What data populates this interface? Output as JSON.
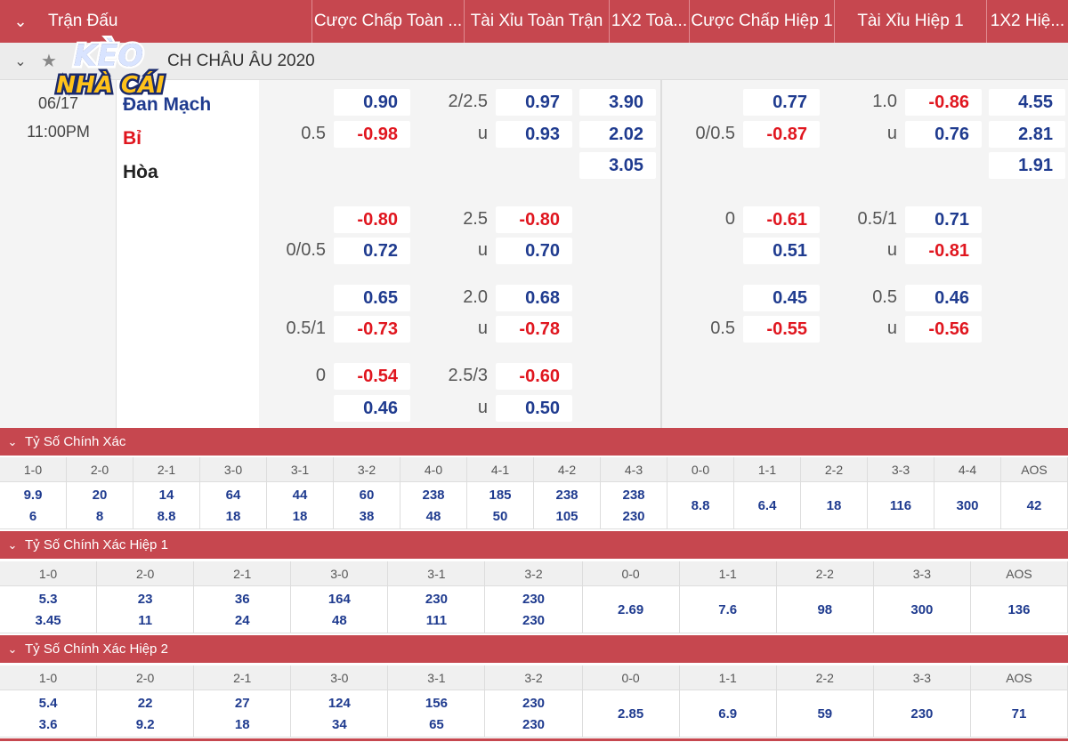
{
  "header": {
    "columns": [
      "Trận Đấu",
      "Cược Chấp Toàn ...",
      "Tài Xỉu Toàn Trận",
      "1X2 Toà...",
      "Cược Chấp Hiệp 1",
      "Tài Xỉu Hiệp 1",
      "1X2 Hiệ..."
    ]
  },
  "league": {
    "name": "CH CHÂU ÂU 2020"
  },
  "logo": {
    "line1": "KÈO",
    "line2": "NHÀ CÁI"
  },
  "match": {
    "date": "06/17",
    "time": "11:00PM",
    "home": "Đan Mạch",
    "away": "Bỉ",
    "draw": "Hòa",
    "rows": [
      {
        "hdp_l1": "",
        "hdp1": "0.90",
        "hdp_l2": "0.5",
        "hdp2": "-0.98",
        "ou_l1": "2/2.5",
        "ou1": "0.97",
        "ou_l2": "u",
        "ou2": "0.93",
        "x1": "3.90",
        "x2": "2.02",
        "x3": "3.05",
        "h1hdp_l1": "",
        "h1hdp1": "0.77",
        "h1hdp_l2": "0/0.5",
        "h1hdp2": "-0.87",
        "h1ou_l1": "1.0",
        "h1ou1": "-0.86",
        "h1ou_l2": "u",
        "h1ou2": "0.76",
        "h1x1": "4.55",
        "h1x2": "2.81",
        "h1x3": "1.91"
      },
      {
        "hdp_l1": "",
        "hdp1": "-0.80",
        "hdp_l2": "0/0.5",
        "hdp2": "0.72",
        "ou_l1": "2.5",
        "ou1": "-0.80",
        "ou_l2": "u",
        "ou2": "0.70",
        "h1hdp_l1": "0",
        "h1hdp1": "-0.61",
        "h1hdp_l2": "",
        "h1hdp2": "0.51",
        "h1ou_l1": "0.5/1",
        "h1ou1": "0.71",
        "h1ou_l2": "u",
        "h1ou2": "-0.81"
      },
      {
        "hdp_l1": "",
        "hdp1": "0.65",
        "hdp_l2": "0.5/1",
        "hdp2": "-0.73",
        "ou_l1": "2.0",
        "ou1": "0.68",
        "ou_l2": "u",
        "ou2": "-0.78",
        "h1hdp_l1": "",
        "h1hdp1": "0.45",
        "h1hdp_l2": "0.5",
        "h1hdp2": "-0.55",
        "h1ou_l1": "0.5",
        "h1ou1": "0.46",
        "h1ou_l2": "u",
        "h1ou2": "-0.56"
      },
      {
        "hdp_l1": "0",
        "hdp1": "-0.54",
        "hdp_l2": "",
        "hdp2": "0.46",
        "ou_l1": "2.5/3",
        "ou1": "-0.60",
        "ou_l2": "u",
        "ou2": "0.50"
      }
    ]
  },
  "cs_full": {
    "title": "Tỷ Số Chính Xác",
    "labels": [
      "1-0",
      "2-0",
      "2-1",
      "3-0",
      "3-1",
      "3-2",
      "4-0",
      "4-1",
      "4-2",
      "4-3",
      "0-0",
      "1-1",
      "2-2",
      "3-3",
      "4-4",
      "AOS"
    ],
    "top": [
      "9.9",
      "20",
      "14",
      "64",
      "44",
      "60",
      "238",
      "185",
      "238",
      "238",
      "8.8",
      "6.4",
      "18",
      "116",
      "300",
      "42"
    ],
    "bottom": [
      "6",
      "8",
      "8.8",
      "18",
      "18",
      "38",
      "48",
      "50",
      "105",
      "230",
      "",
      "",
      "",
      "",
      "",
      ""
    ]
  },
  "cs_h1": {
    "title": "Tỷ Số Chính Xác Hiệp 1",
    "labels": [
      "1-0",
      "2-0",
      "2-1",
      "3-0",
      "3-1",
      "3-2",
      "0-0",
      "1-1",
      "2-2",
      "3-3",
      "AOS"
    ],
    "top": [
      "5.3",
      "23",
      "36",
      "164",
      "230",
      "230",
      "2.69",
      "7.6",
      "98",
      "300",
      "136"
    ],
    "bottom": [
      "3.45",
      "11",
      "24",
      "48",
      "111",
      "230",
      "",
      "",
      "",
      "",
      ""
    ]
  },
  "cs_h2": {
    "title": "Tỷ Số Chính Xác Hiệp 2",
    "labels": [
      "1-0",
      "2-0",
      "2-1",
      "3-0",
      "3-1",
      "3-2",
      "0-0",
      "1-1",
      "2-2",
      "3-3",
      "AOS"
    ],
    "top": [
      "5.4",
      "22",
      "27",
      "124",
      "156",
      "230",
      "2.85",
      "6.9",
      "59",
      "230",
      "71"
    ],
    "bottom": [
      "3.6",
      "9.2",
      "18",
      "34",
      "65",
      "230",
      "",
      "",
      "",
      "",
      ""
    ]
  }
}
